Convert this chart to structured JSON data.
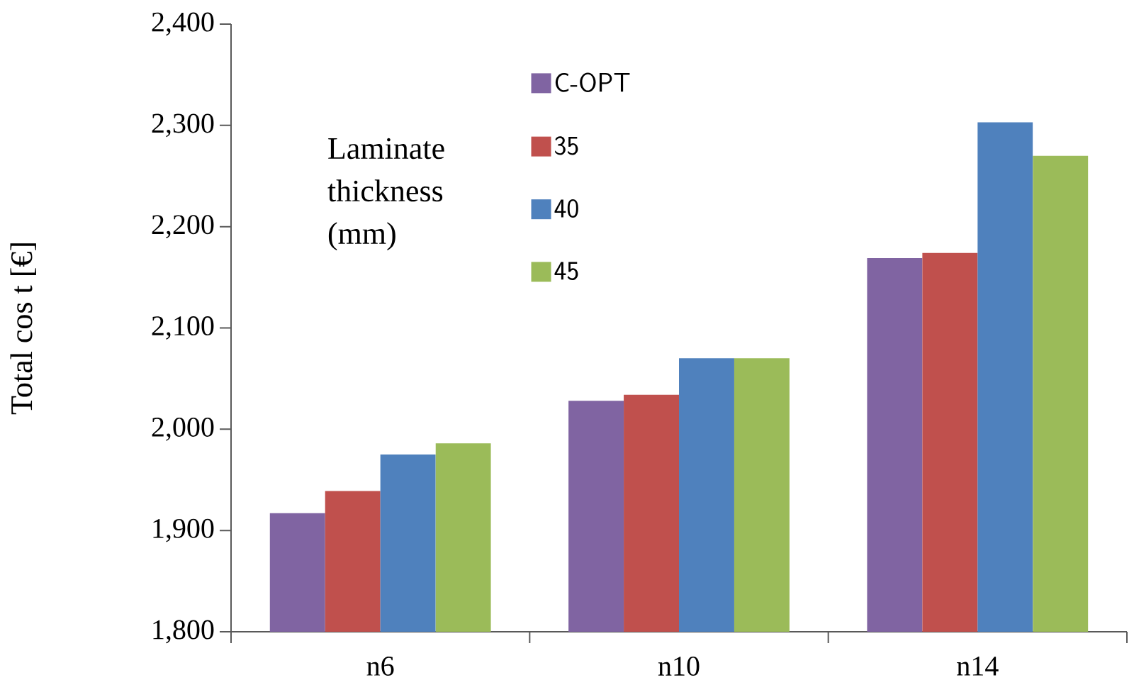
{
  "chart_data": {
    "type": "bar",
    "ylabel": "Total cos t  [€]",
    "legend_title": "Laminate thickness (mm)",
    "categories": [
      "n6",
      "n10",
      "n14"
    ],
    "series": [
      {
        "name": "C-OPT",
        "color": "#8064a2",
        "values": [
          1917,
          2028,
          2169
        ]
      },
      {
        "name": "35",
        "color": "#c0504d",
        "values": [
          1939,
          2034,
          2174
        ]
      },
      {
        "name": "40",
        "color": "#4f81bd",
        "values": [
          1975,
          2070,
          2303
        ]
      },
      {
        "name": "45",
        "color": "#9bbb59",
        "values": [
          1986,
          2070,
          2270
        ]
      }
    ],
    "ylim": [
      1800,
      2400
    ],
    "yticks": [
      {
        "value": 1800,
        "label": "1,800"
      },
      {
        "value": 1900,
        "label": "1,900"
      },
      {
        "value": 2000,
        "label": "2,000"
      },
      {
        "value": 2100,
        "label": "2,100"
      },
      {
        "value": 2200,
        "label": "2,200"
      },
      {
        "value": 2300,
        "label": "2,300"
      },
      {
        "value": 2400,
        "label": "2,400"
      }
    ],
    "grid": false,
    "legend": "top left"
  }
}
